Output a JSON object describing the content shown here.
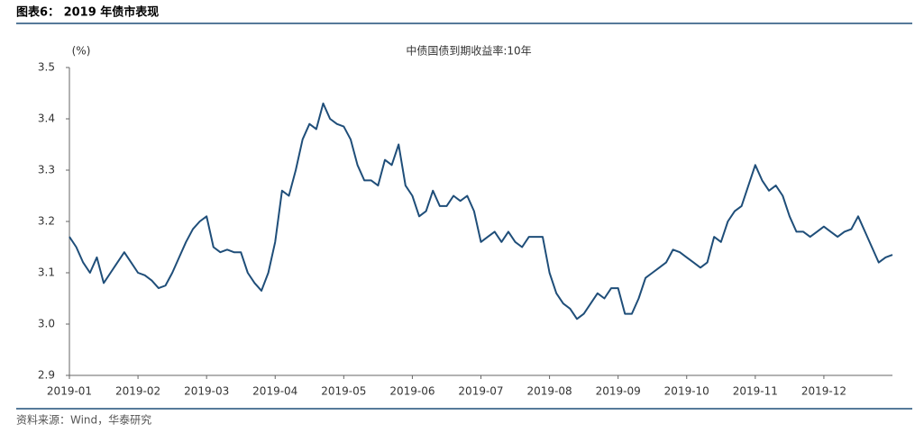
{
  "header": {
    "title": "图表6：  2019 年债市表现"
  },
  "chart_data": {
    "type": "line",
    "title": "中债国债到期收益率:10年",
    "y_label": "(%)",
    "color": "#1f4e79",
    "categories": [
      "2019-01",
      null,
      null,
      null,
      null,
      null,
      null,
      null,
      null,
      null,
      "2019-02",
      null,
      null,
      null,
      null,
      null,
      null,
      null,
      null,
      null,
      "2019-03",
      null,
      null,
      null,
      null,
      null,
      null,
      null,
      null,
      null,
      "2019-04",
      null,
      null,
      null,
      null,
      null,
      null,
      null,
      null,
      null,
      "2019-05",
      null,
      null,
      null,
      null,
      null,
      null,
      null,
      null,
      null,
      "2019-06",
      null,
      null,
      null,
      null,
      null,
      null,
      null,
      null,
      null,
      "2019-07",
      null,
      null,
      null,
      null,
      null,
      null,
      null,
      null,
      null,
      "2019-08",
      null,
      null,
      null,
      null,
      null,
      null,
      null,
      null,
      null,
      "2019-09",
      null,
      null,
      null,
      null,
      null,
      null,
      null,
      null,
      null,
      "2019-10",
      null,
      null,
      null,
      null,
      null,
      null,
      null,
      null,
      null,
      "2019-11",
      null,
      null,
      null,
      null,
      null,
      null,
      null,
      null,
      null,
      "2019-12",
      null,
      null,
      null,
      null,
      null,
      null,
      null,
      null,
      null,
      null
    ],
    "values": [
      3.17,
      3.15,
      3.12,
      3.1,
      3.13,
      3.08,
      3.1,
      3.12,
      3.14,
      3.12,
      3.1,
      3.095,
      3.085,
      3.07,
      3.075,
      3.1,
      3.13,
      3.16,
      3.185,
      3.2,
      3.21,
      3.15,
      3.14,
      3.145,
      3.14,
      3.14,
      3.1,
      3.08,
      3.065,
      3.1,
      3.16,
      3.26,
      3.25,
      3.3,
      3.36,
      3.39,
      3.38,
      3.43,
      3.4,
      3.39,
      3.385,
      3.36,
      3.31,
      3.28,
      3.28,
      3.27,
      3.32,
      3.31,
      3.35,
      3.27,
      3.25,
      3.21,
      3.22,
      3.26,
      3.23,
      3.23,
      3.25,
      3.24,
      3.25,
      3.22,
      3.16,
      3.17,
      3.18,
      3.16,
      3.18,
      3.16,
      3.15,
      3.17,
      3.17,
      3.17,
      3.1,
      3.06,
      3.04,
      3.03,
      3.01,
      3.02,
      3.04,
      3.06,
      3.05,
      3.07,
      3.07,
      3.02,
      3.02,
      3.05,
      3.09,
      3.1,
      3.11,
      3.12,
      3.145,
      3.14,
      3.13,
      3.12,
      3.11,
      3.12,
      3.17,
      3.16,
      3.2,
      3.22,
      3.23,
      3.27,
      3.31,
      3.28,
      3.26,
      3.27,
      3.25,
      3.21,
      3.18,
      3.18,
      3.17,
      3.18,
      3.19,
      3.18,
      3.17,
      3.18,
      3.185,
      3.21,
      3.18,
      3.15,
      3.12,
      3.13,
      3.135
    ],
    "ylim": [
      2.9,
      3.5
    ],
    "yticks": [
      2.9,
      {
        "value": 3,
        "label": "3.0"
      },
      3.1,
      3.2,
      3.3,
      3.4,
      3.5
    ]
  },
  "footer": {
    "source": "资料来源：Wind，华泰研究"
  }
}
